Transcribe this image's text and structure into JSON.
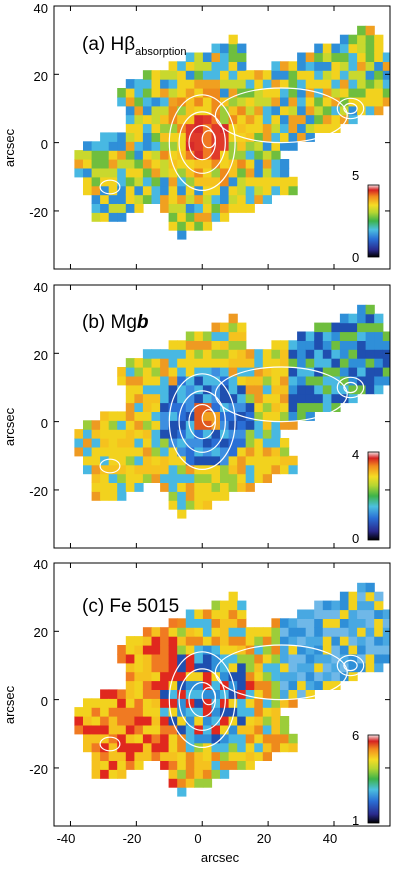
{
  "figure": {
    "xlabel": "arcsec",
    "xticks": [
      "-40",
      "-20",
      "0",
      "20",
      "40"
    ]
  },
  "chart_data": [
    {
      "type": "heatmap",
      "label": "(a) Hβ",
      "label_sub": "absorption",
      "ylabel": "arcsec",
      "xlim": [
        -45,
        57
      ],
      "ylim": [
        -37,
        40
      ],
      "yticks": [
        "40",
        "20",
        "0",
        "-20"
      ],
      "colorbar": {
        "min_label": "0",
        "max_label": "5"
      },
      "map_trend": "high (red) near nucleus, lower (green/blue) in outer ring and north-east arm",
      "colors": {
        "high": "#d63a2a",
        "mid": "#f2d21e",
        "low": "#2f8fd8"
      }
    },
    {
      "type": "heatmap",
      "label": "(b) Mg",
      "label_italic": "b",
      "ylabel": "arcsec",
      "xlim": [
        -45,
        57
      ],
      "ylim": [
        -37,
        40
      ],
      "yticks": [
        "40",
        "20",
        "0",
        "-20"
      ],
      "colorbar": {
        "min_label": "0",
        "max_label": "4"
      },
      "map_trend": "low (blue) ring around nucleus and north-east arm, higher (yellow/orange) elsewhere",
      "colors": {
        "high": "#ee7a1c",
        "mid": "#f2d21e",
        "low": "#2f8fd8"
      }
    },
    {
      "type": "heatmap",
      "label": "(c) Fe 5015",
      "ylabel": "arcsec",
      "xlim": [
        -45,
        57
      ],
      "ylim": [
        -37,
        40
      ],
      "yticks": [
        "40",
        "20",
        "0",
        "-20"
      ],
      "colorbar": {
        "min_label": "1",
        "max_label": "6"
      },
      "map_trend": "mixed, blue ring around nucleus, north-east arm blue, south-west red/orange",
      "colors": {
        "high": "#e0281e",
        "mid": "#f2d21e",
        "low": "#3e9ee0"
      }
    }
  ]
}
